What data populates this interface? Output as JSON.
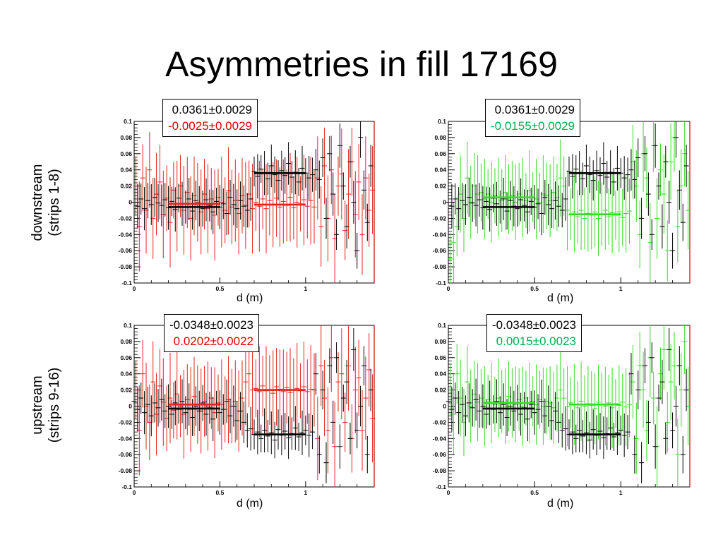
{
  "slide": {
    "title": "Asymmetries in fill 17169",
    "row_labels": {
      "downstream": [
        "downstream",
        "(strips 1-8)"
      ],
      "upstream": [
        "upstream",
        "(strips 9-16)"
      ]
    }
  },
  "colors": {
    "black": "#000000",
    "red": "#e8201e",
    "red_text": "#e00000",
    "green": "#33dd22",
    "green_text": "#00b050",
    "frame_right": "#cc0000"
  },
  "chart_data": [
    {
      "type": "scatter",
      "panel": "downstream-left",
      "xlabel": "d (m)",
      "xlim": [
        0,
        1.4
      ],
      "ylim": [
        -0.1,
        0.1
      ],
      "yticks": [
        "0.1",
        "0.08",
        "0.06",
        "0.04",
        "0.02",
        "0",
        "-0.02",
        "-0.04",
        "-0.06",
        "-0.08",
        "-0.1"
      ],
      "xticks": [
        "0",
        "0.5",
        "1"
      ],
      "stats": [
        {
          "text": "0.0361±0.0029",
          "color": "black"
        },
        {
          "text": "-0.0025±0.0029",
          "color": "red"
        }
      ],
      "fits": [
        {
          "color": "black",
          "segments": [
            [
              0.2,
              0.5,
              -0.006
            ],
            [
              0.7,
              1.0,
              0.036
            ]
          ]
        },
        {
          "color": "red",
          "segments": [
            [
              0.2,
              0.5,
              -0.002
            ],
            [
              0.7,
              1.0,
              -0.003
            ]
          ]
        }
      ],
      "series": [
        {
          "color": "black",
          "x_start": 0.0,
          "x_step": 0.02,
          "err_base": 0.022,
          "values": [
            0.0,
            -0.005,
            0.004,
            -0.008,
            0.002,
            -0.003,
            0.006,
            -0.001,
            -0.004,
            0.003,
            -0.007,
            0.001,
            -0.009,
            0.005,
            -0.002,
            -0.006,
            0.004,
            -0.011,
            0.002,
            -0.005,
            -0.008,
            0.003,
            -0.004,
            -0.012,
            0.001,
            -0.006,
            -0.002,
            -0.014,
            0.006,
            -0.003,
            -0.008,
            0.002,
            -0.005,
            -0.01,
            0.004,
            0.038,
            0.032,
            0.041,
            0.036,
            0.029,
            0.045,
            0.034,
            0.027,
            0.039,
            0.033,
            0.048,
            0.031,
            0.037,
            0.025,
            0.042,
            0.036,
            0.03,
            0.034,
            0.04,
            0.028,
            0.055,
            -0.02,
            0.06,
            0.01,
            -0.04,
            0.07,
            0.02,
            -0.03,
            0.05,
            0.0,
            -0.06,
            0.08,
            0.015,
            -0.025,
            0.045
          ]
        },
        {
          "color": "red",
          "x_start": 0.01,
          "x_step": 0.02,
          "err_base": 0.045,
          "values": [
            0.02,
            -0.03,
            0.03,
            -0.01,
            0.04,
            -0.02,
            0.01,
            0.025,
            -0.015,
            0.005,
            -0.025,
            0.015,
            -0.005,
            0.02,
            -0.01,
            0.012,
            -0.02,
            0.008,
            0.0,
            -0.012,
            0.01,
            -0.008,
            0.004,
            -0.016,
            0.006,
            0.0,
            -0.01,
            0.014,
            -0.006,
            0.002,
            -0.014,
            0.008,
            -0.004,
            0.01,
            -0.008,
            0.0,
            -0.005,
            0.004,
            -0.008,
            0.002,
            -0.003,
            0.005,
            -0.006,
            0.001,
            -0.004,
            0.006,
            -0.007,
            0.0,
            -0.002,
            0.003,
            -0.005,
            0.002,
            -0.006,
            0.03,
            -0.03,
            0.045,
            -0.02,
            0.04,
            -0.045,
            0.02,
            0.035,
            -0.035,
            0.01,
            0.05,
            -0.015,
            0.025,
            -0.04,
            0.03,
            -0.01,
            0.015
          ]
        }
      ]
    },
    {
      "type": "scatter",
      "panel": "downstream-right",
      "xlabel": "d (m)",
      "xlim": [
        0,
        1.4
      ],
      "ylim": [
        -0.1,
        0.1
      ],
      "yticks": [
        "0.1",
        "0.08",
        "0.06",
        "0.04",
        "0.02",
        "0",
        "-0.02",
        "-0.04",
        "-0.06",
        "-0.08",
        "-0.1"
      ],
      "xticks": [
        "0",
        "0.5",
        "1"
      ],
      "stats": [
        {
          "text": "0.0361±0.0029",
          "color": "black"
        },
        {
          "text": "-0.0155±0.0029",
          "color": "green"
        }
      ],
      "fits": [
        {
          "color": "black",
          "segments": [
            [
              0.2,
              0.5,
              -0.006
            ],
            [
              0.7,
              1.0,
              0.036
            ]
          ]
        },
        {
          "color": "green",
          "segments": [
            [
              0.2,
              0.5,
              0.006
            ],
            [
              0.7,
              1.0,
              -0.015
            ]
          ]
        }
      ],
      "series": [
        {
          "color": "black",
          "x_start": 0.0,
          "x_step": 0.02,
          "err_base": 0.022,
          "values": [
            0.0,
            -0.005,
            0.004,
            -0.008,
            0.002,
            -0.003,
            0.006,
            -0.001,
            -0.004,
            0.003,
            -0.007,
            0.001,
            -0.009,
            0.005,
            -0.002,
            -0.006,
            0.004,
            -0.011,
            0.002,
            -0.005,
            -0.008,
            0.003,
            -0.004,
            -0.012,
            0.001,
            -0.006,
            -0.002,
            -0.014,
            0.006,
            -0.003,
            -0.008,
            0.002,
            -0.005,
            -0.01,
            0.004,
            0.038,
            0.032,
            0.041,
            0.036,
            0.029,
            0.045,
            0.034,
            0.027,
            0.039,
            0.033,
            0.048,
            0.031,
            0.037,
            0.025,
            0.042,
            0.036,
            0.03,
            0.034,
            0.04,
            0.028,
            0.055,
            -0.02,
            0.06,
            0.01,
            -0.04,
            0.07,
            0.02,
            -0.03,
            0.05,
            0.0,
            -0.06,
            0.08,
            0.015,
            -0.025,
            0.045
          ]
        },
        {
          "color": "green",
          "x_start": 0.01,
          "x_step": 0.02,
          "err_base": 0.04,
          "values": [
            -0.07,
            -0.05,
            -0.03,
            0.01,
            -0.02,
            0.03,
            0.0,
            0.02,
            0.01,
            0.012,
            0.004,
            0.01,
            0.0,
            0.008,
            0.006,
            0.002,
            0.012,
            0.004,
            0.008,
            0.0,
            0.01,
            0.006,
            0.002,
            0.014,
            0.006,
            0.004,
            0.0,
            0.01,
            0.008,
            0.002,
            0.012,
            0.006,
            0.03,
            0.02,
            -0.01,
            -0.015,
            -0.012,
            -0.018,
            -0.01,
            -0.02,
            -0.014,
            -0.016,
            -0.012,
            -0.02,
            -0.015,
            -0.01,
            -0.018,
            -0.013,
            -0.016,
            -0.012,
            -0.019,
            -0.014,
            -0.011,
            0.05,
            0.02,
            -0.04,
            0.06,
            0.03,
            -0.05,
            0.07,
            -0.02,
            0.04,
            0.01,
            -0.06,
            0.05,
            0.08,
            -0.03,
            0.02,
            0.06,
            -0.01
          ]
        }
      ]
    },
    {
      "type": "scatter",
      "panel": "upstream-left",
      "xlabel": "d (m)",
      "xlim": [
        0,
        1.4
      ],
      "ylim": [
        -0.1,
        0.1
      ],
      "yticks": [
        "0.1",
        "0.08",
        "0.06",
        "0.04",
        "0.02",
        "0",
        "-0.02",
        "-0.04",
        "-0.06",
        "-0.08",
        "-0.1"
      ],
      "xticks": [
        "0",
        "0.5",
        "1"
      ],
      "stats": [
        {
          "text": "-0.0348±0.0023",
          "color": "black"
        },
        {
          "text": "0.0202±0.0022",
          "color": "red"
        }
      ],
      "fits": [
        {
          "color": "black",
          "segments": [
            [
              0.2,
              0.5,
              -0.003
            ],
            [
              0.7,
              1.0,
              -0.035
            ]
          ]
        },
        {
          "color": "red",
          "segments": [
            [
              0.2,
              0.5,
              0.002
            ],
            [
              0.7,
              1.0,
              0.02
            ]
          ]
        }
      ],
      "series": [
        {
          "color": "black",
          "x_start": 0.0,
          "x_step": 0.02,
          "err_base": 0.022,
          "values": [
            0.006,
            -0.004,
            0.01,
            -0.008,
            0.002,
            -0.012,
            0.004,
            -0.002,
            0.008,
            -0.006,
            0.0,
            -0.01,
            0.004,
            -0.004,
            0.006,
            -0.008,
            0.002,
            -0.014,
            0.0,
            -0.006,
            0.004,
            -0.01,
            -0.002,
            -0.016,
            0.002,
            -0.008,
            -0.004,
            0.006,
            -0.012,
            0.0,
            -0.018,
            -0.006,
            -0.02,
            -0.03,
            -0.028,
            -0.035,
            -0.032,
            -0.04,
            -0.03,
            -0.037,
            -0.033,
            -0.042,
            -0.029,
            -0.036,
            -0.031,
            -0.039,
            -0.034,
            -0.027,
            -0.038,
            -0.033,
            -0.03,
            -0.036,
            -0.032,
            0.04,
            -0.06,
            0.02,
            -0.07,
            0.05,
            -0.02,
            0.06,
            -0.05,
            0.01,
            0.03,
            -0.04,
            0.07,
            -0.03,
            0.0,
            0.05,
            -0.06,
            0.02
          ]
        },
        {
          "color": "red",
          "x_start": 0.01,
          "x_step": 0.02,
          "err_base": 0.045,
          "values": [
            0.02,
            -0.03,
            0.04,
            0.0,
            -0.02,
            0.03,
            -0.01,
            0.025,
            0.005,
            -0.015,
            0.01,
            -0.005,
            0.015,
            0.0,
            -0.01,
            0.008,
            -0.004,
            0.012,
            0.002,
            -0.006,
            0.006,
            0.0,
            0.01,
            -0.008,
            0.004,
            0.002,
            -0.004,
            0.008,
            0.0,
            0.006,
            -0.006,
            0.01,
            0.03,
            0.04,
            0.02,
            0.022,
            0.018,
            0.025,
            0.019,
            0.02,
            0.016,
            0.024,
            0.021,
            0.018,
            0.023,
            0.017,
            0.02,
            0.022,
            0.019,
            0.024,
            0.018,
            0.021,
            0.02,
            -0.04,
            0.05,
            0.01,
            -0.03,
            0.06,
            -0.05,
            0.03,
            0.04,
            -0.02,
            0.05,
            -0.04,
            0.02,
            0.035,
            -0.03,
            0.01,
            0.045,
            -0.015
          ]
        }
      ]
    },
    {
      "type": "scatter",
      "panel": "upstream-right",
      "xlabel": "d (m)",
      "xlim": [
        0,
        1.4
      ],
      "ylim": [
        -0.1,
        0.1
      ],
      "yticks": [
        "0.1",
        "0.08",
        "0.06",
        "0.04",
        "0.02",
        "0",
        "-0.02",
        "-0.04",
        "-0.06",
        "-0.08",
        "-0.1"
      ],
      "xticks": [
        "0",
        "0.5",
        "1"
      ],
      "stats": [
        {
          "text": "-0.0348±0.0023",
          "color": "black"
        },
        {
          "text": "0.0015±0.0023",
          "color": "green"
        }
      ],
      "fits": [
        {
          "color": "black",
          "segments": [
            [
              0.2,
              0.5,
              -0.003
            ],
            [
              0.7,
              1.0,
              -0.035
            ]
          ]
        },
        {
          "color": "green",
          "segments": [
            [
              0.2,
              0.5,
              0.004
            ],
            [
              0.7,
              1.0,
              0.002
            ]
          ]
        }
      ],
      "series": [
        {
          "color": "black",
          "x_start": 0.0,
          "x_step": 0.02,
          "err_base": 0.022,
          "values": [
            0.006,
            -0.004,
            0.01,
            -0.008,
            0.002,
            -0.012,
            0.004,
            -0.002,
            0.008,
            -0.006,
            0.0,
            -0.01,
            0.004,
            -0.004,
            0.006,
            -0.008,
            0.002,
            -0.014,
            0.0,
            -0.006,
            0.004,
            -0.01,
            -0.002,
            -0.016,
            0.002,
            -0.008,
            -0.004,
            0.006,
            -0.012,
            0.0,
            -0.018,
            -0.006,
            -0.02,
            -0.03,
            -0.028,
            -0.035,
            -0.032,
            -0.04,
            -0.03,
            -0.037,
            -0.033,
            -0.042,
            -0.029,
            -0.036,
            -0.031,
            -0.039,
            -0.034,
            -0.027,
            -0.038,
            -0.033,
            -0.03,
            -0.036,
            -0.032,
            0.04,
            -0.06,
            0.02,
            -0.07,
            0.05,
            -0.02,
            0.06,
            -0.05,
            0.01,
            0.03,
            -0.04,
            0.07,
            -0.03,
            0.0,
            0.05,
            -0.06,
            0.02
          ]
        },
        {
          "color": "green",
          "x_start": 0.01,
          "x_step": 0.02,
          "err_base": 0.04,
          "values": [
            0.02,
            -0.01,
            0.04,
            0.01,
            -0.02,
            0.03,
            0.0,
            0.015,
            0.005,
            0.01,
            0.0,
            0.008,
            0.004,
            0.002,
            0.01,
            0.006,
            0.0,
            0.012,
            0.004,
            0.002,
            0.008,
            0.0,
            0.01,
            0.004,
            0.006,
            0.002,
            0.008,
            0.0,
            0.006,
            0.004,
            -0.002,
            0.01,
            0.02,
            0.01,
            0.0,
            0.004,
            0.002,
            -0.002,
            0.006,
            0.0,
            0.003,
            0.001,
            -0.003,
            0.005,
            0.002,
            0.0,
            0.004,
            -0.002,
            0.003,
            0.001,
            0.005,
            -0.001,
            0.002,
            0.03,
            -0.04,
            0.05,
            0.02,
            -0.03,
            0.06,
            0.01,
            -0.05,
            0.04,
            0.07,
            -0.02,
            0.03,
            0.05,
            -0.06,
            0.02,
            0.08,
            0.0
          ]
        }
      ]
    }
  ]
}
